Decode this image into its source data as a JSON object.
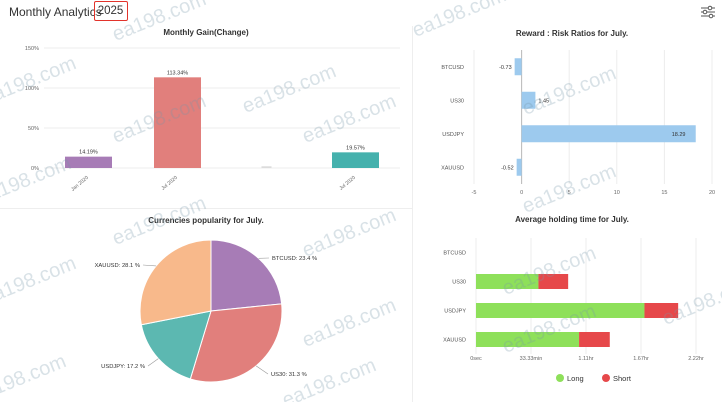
{
  "header": {
    "title": "Monthly Analytics",
    "year": "2025",
    "settings_icon": "sliders-icon",
    "year_box_color": "#e2332b"
  },
  "watermark": "ea198.com",
  "charts": {
    "gain": {
      "title": "Monthly Gain(Change)",
      "y_ticks": [
        "150%",
        "100%",
        "50%",
        "0%"
      ],
      "chart_data": {
        "type": "bar",
        "categories": [
          "Jan 2020",
          "Jul 2020",
          "",
          "Jul 2020"
        ],
        "values": [
          14.19,
          113.34,
          0,
          19.57
        ],
        "labels": [
          "14.19%",
          "113.34%",
          "",
          "19.57%"
        ],
        "colors": [
          "#a77cb6",
          "#e17f7c",
          "#cccccc",
          "#45b1ad"
        ],
        "ylim": [
          0,
          150
        ]
      }
    },
    "risk": {
      "title": "Reward : Risk Ratios for July.",
      "x_ticks": [
        "-5",
        "0",
        "5",
        "10",
        "15",
        "20"
      ],
      "chart_data": {
        "type": "bar",
        "orientation": "horizontal",
        "categories": [
          "BTCUSD",
          "US30",
          "USDJPY",
          "XAUUSD"
        ],
        "values": [
          -0.73,
          1.45,
          18.29,
          -0.52
        ],
        "labels": [
          "-0.73",
          "1.45",
          "18.29",
          "-0.52"
        ],
        "color": "#9dcaee",
        "xlim": [
          -5,
          20
        ]
      }
    },
    "popularity": {
      "title": "Currencies popularity for July.",
      "chart_data": {
        "type": "pie",
        "slices": [
          {
            "name": "BTCUSD",
            "value": 23.4,
            "label": "BTCUSD: 23.4 %",
            "color": "#a77cb6"
          },
          {
            "name": "US30",
            "value": 31.3,
            "label": "US30: 31.3 %",
            "color": "#e17f7c"
          },
          {
            "name": "USDJPY",
            "value": 17.2,
            "label": "USDJPY: 17.2 %",
            "color": "#5cb8b1"
          },
          {
            "name": "XAUUSD",
            "value": 28.1,
            "label": "XAUUSD: 28.1 %",
            "color": "#f8b98b"
          }
        ]
      }
    },
    "holding": {
      "title": "Average holding time for July.",
      "x_ticks": [
        "0sec",
        "33.33min",
        "1.11hr",
        "1.67hr",
        "2.22hr"
      ],
      "chart_data": {
        "type": "bar",
        "orientation": "horizontal",
        "stacked": true,
        "categories": [
          "BTCUSD",
          "US30",
          "USDJPY",
          "XAUUSD"
        ],
        "xlim": [
          0,
          2.22
        ],
        "x_unit": "hr",
        "series": [
          {
            "name": "Long",
            "color": "#8ee05a",
            "values": [
              0,
              0.63,
              1.7,
              1.04
            ]
          },
          {
            "name": "Short",
            "color": "#e6484a",
            "values": [
              0,
              0.3,
              0.34,
              0.31
            ]
          }
        ]
      }
    }
  }
}
